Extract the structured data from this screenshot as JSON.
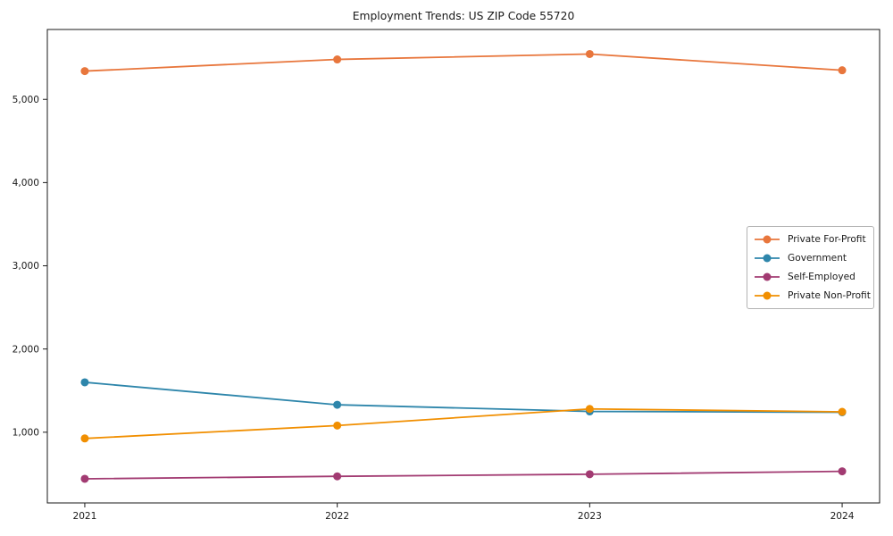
{
  "title": "Employment Trends: US ZIP Code 55720",
  "chart_data": {
    "type": "line",
    "title": "Employment Trends: US ZIP Code 55720",
    "categories": [
      "2021",
      "2022",
      "2023",
      "2024"
    ],
    "series": [
      {
        "name": "Private For-Profit",
        "color": "#E8763C",
        "values": [
          5340,
          5480,
          5545,
          5350
        ]
      },
      {
        "name": "Government",
        "color": "#2E86AB",
        "values": [
          1600,
          1330,
          1250,
          1240
        ]
      },
      {
        "name": "Self-Employed",
        "color": "#A23B72",
        "values": [
          440,
          470,
          495,
          530
        ]
      },
      {
        "name": "Private Non-Profit",
        "color": "#F18F01",
        "values": [
          925,
          1080,
          1280,
          1245
        ]
      }
    ],
    "xlabel": "",
    "ylabel": "",
    "yticks": [
      1000,
      2000,
      3000,
      4000,
      5000
    ],
    "ytick_labels": [
      "1,000",
      "2,000",
      "3,000",
      "4,000",
      "5,000"
    ],
    "ylim": [
      150,
      5840
    ],
    "grid": false,
    "legend_position": "center right",
    "marker": "circle",
    "axis_color": "#1a1a1a"
  }
}
